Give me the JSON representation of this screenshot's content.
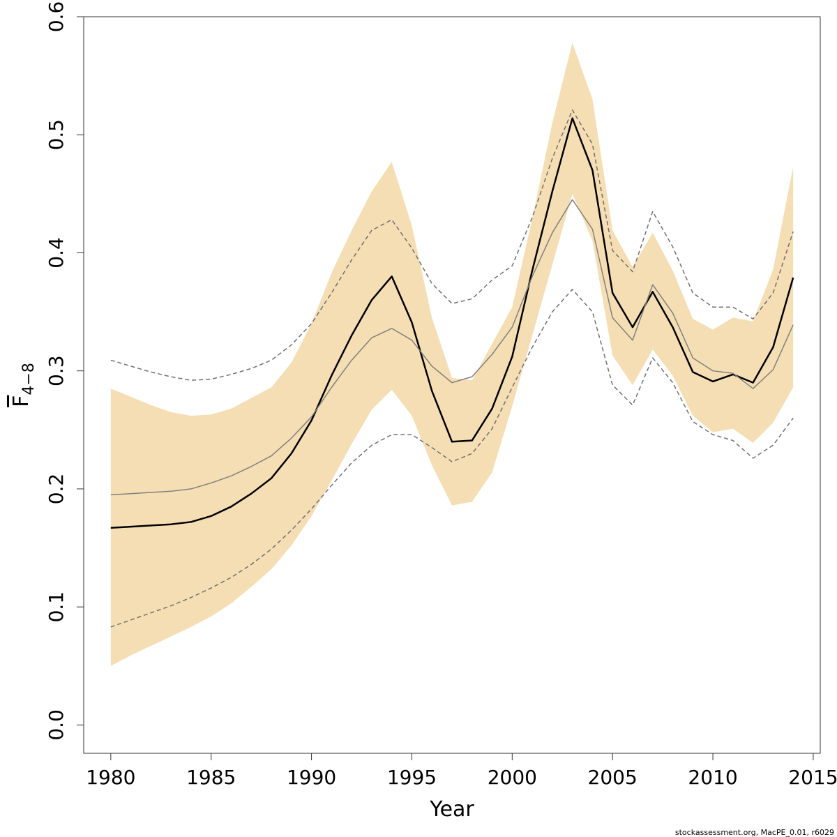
{
  "chart_data": {
    "type": "line",
    "xlabel": "Year",
    "ylabel_base": "F",
    "ylabel_sub": "4−8",
    "xticks": [
      1980,
      1985,
      1990,
      1995,
      2000,
      2005,
      2010,
      2015
    ],
    "yticks": [
      "0.0",
      "0.1",
      "0.2",
      "0.3",
      "0.4",
      "0.5",
      "0.6"
    ],
    "xlim": [
      1978.65,
      1975.35
    ],
    "ylim": [
      -0.024,
      0.6
    ],
    "grid": false,
    "x": [
      1980,
      1981,
      1982,
      1983,
      1984,
      1985,
      1986,
      1987,
      1988,
      1989,
      1990,
      1991,
      1992,
      1993,
      1994,
      1995,
      1996,
      1997,
      1998,
      1999,
      2000,
      2001,
      2002,
      2003,
      2004,
      2005,
      2006,
      2007,
      2008,
      2009,
      2010,
      2011,
      2012,
      2013,
      2014
    ],
    "band": {
      "upper": [
        0.285,
        0.278,
        0.271,
        0.265,
        0.262,
        0.263,
        0.268,
        0.277,
        0.286,
        0.307,
        0.34,
        0.383,
        0.419,
        0.452,
        0.477,
        0.423,
        0.345,
        0.294,
        0.292,
        0.323,
        0.354,
        0.429,
        0.51,
        0.578,
        0.53,
        0.419,
        0.388,
        0.417,
        0.385,
        0.344,
        0.335,
        0.345,
        0.342,
        0.386,
        0.473
      ],
      "lower": [
        0.05,
        0.059,
        0.067,
        0.075,
        0.083,
        0.092,
        0.103,
        0.117,
        0.132,
        0.152,
        0.177,
        0.207,
        0.238,
        0.267,
        0.284,
        0.262,
        0.22,
        0.186,
        0.189,
        0.214,
        0.27,
        0.33,
        0.39,
        0.45,
        0.41,
        0.313,
        0.288,
        0.318,
        0.296,
        0.262,
        0.248,
        0.251,
        0.239,
        0.256,
        0.286
      ],
      "color": "#f5deb3"
    },
    "series": [
      {
        "values": [
          0.167,
          0.168,
          0.169,
          0.17,
          0.172,
          0.177,
          0.185,
          0.196,
          0.209,
          0.23,
          0.258,
          0.296,
          0.33,
          0.36,
          0.38,
          0.341,
          0.283,
          0.24,
          0.241,
          0.268,
          0.312,
          0.385,
          0.452,
          0.514,
          0.47,
          0.366,
          0.337,
          0.367,
          0.337,
          0.299,
          0.291,
          0.297,
          0.29,
          0.32,
          0.379
        ],
        "color": "#000000",
        "width": 2.5,
        "dash": ""
      },
      {
        "values": [
          0.195,
          0.196,
          0.197,
          0.198,
          0.2,
          0.205,
          0.211,
          0.219,
          0.228,
          0.243,
          0.261,
          0.286,
          0.309,
          0.328,
          0.336,
          0.326,
          0.304,
          0.29,
          0.295,
          0.314,
          0.337,
          0.38,
          0.417,
          0.445,
          0.42,
          0.345,
          0.326,
          0.373,
          0.349,
          0.311,
          0.3,
          0.298,
          0.285,
          0.301,
          0.339
        ],
        "color": "#808080",
        "width": 1.5,
        "dash": ""
      },
      {
        "values": [
          0.309,
          0.304,
          0.299,
          0.295,
          0.292,
          0.293,
          0.297,
          0.302,
          0.309,
          0.322,
          0.34,
          0.366,
          0.394,
          0.419,
          0.428,
          0.404,
          0.374,
          0.357,
          0.361,
          0.377,
          0.389,
          0.43,
          0.48,
          0.521,
          0.492,
          0.402,
          0.384,
          0.435,
          0.405,
          0.366,
          0.354,
          0.354,
          0.344,
          0.366,
          0.418
        ],
        "color": "#707070",
        "width": 1.5,
        "dash": "6,4"
      },
      {
        "values": [
          0.083,
          0.089,
          0.095,
          0.101,
          0.108,
          0.116,
          0.125,
          0.136,
          0.149,
          0.165,
          0.183,
          0.203,
          0.222,
          0.237,
          0.246,
          0.246,
          0.235,
          0.223,
          0.23,
          0.251,
          0.286,
          0.32,
          0.35,
          0.369,
          0.35,
          0.288,
          0.271,
          0.311,
          0.29,
          0.257,
          0.246,
          0.241,
          0.226,
          0.237,
          0.26
        ],
        "color": "#707070",
        "width": 1.5,
        "dash": "6,4"
      }
    ]
  },
  "footer": {
    "credit": "stockassessment.org, MacPE_0.01, r6029"
  }
}
